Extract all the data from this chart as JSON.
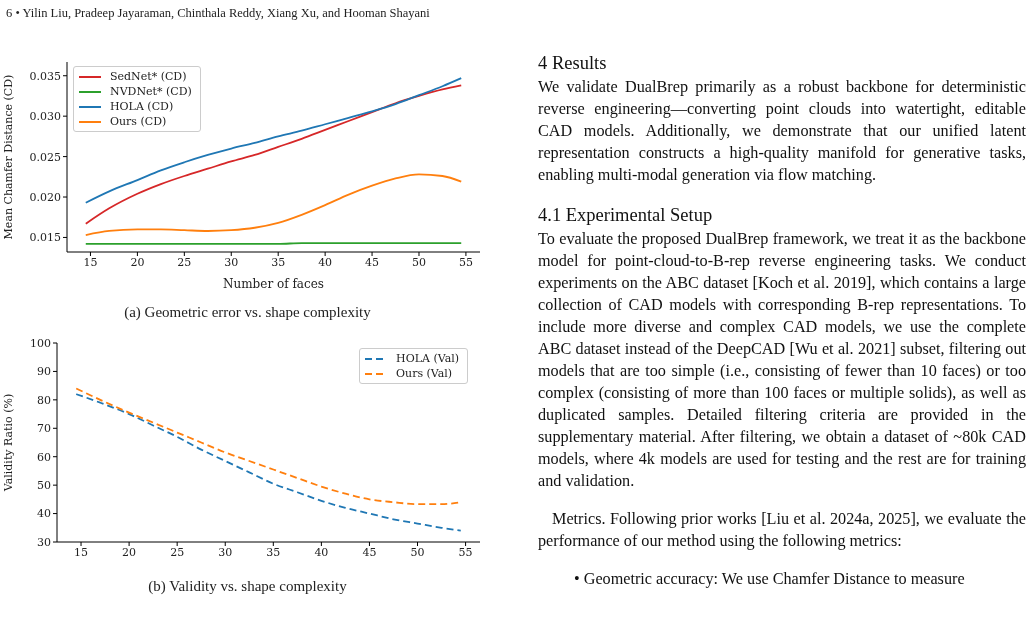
{
  "chart_data": [
    {
      "type": "line",
      "title": "(a) Geometric error vs. shape complexity",
      "xlabel": "Number of faces",
      "ylabel": "Mean Chamfer Distance (CD)",
      "x": [
        14.5,
        17,
        20,
        22.5,
        25,
        27.5,
        30,
        32.5,
        35,
        37.5,
        40,
        42.5,
        45,
        47.5,
        50,
        52.5,
        54.5
      ],
      "series": [
        {
          "name": "SedNet* (CD)",
          "color": "#d62728",
          "values": [
            0.0167,
            0.0186,
            0.0204,
            0.0216,
            0.0226,
            0.0235,
            0.0244,
            0.0252,
            0.0262,
            0.0272,
            0.0283,
            0.0294,
            0.0305,
            0.0316,
            0.0325,
            0.0333,
            0.0338
          ]
        },
        {
          "name": "NVDNet* (CD)",
          "color": "#2ca02c",
          "values": [
            0.0142,
            0.0142,
            0.0142,
            0.0142,
            0.0142,
            0.0142,
            0.0142,
            0.0142,
            0.0142,
            0.0143,
            0.0143,
            0.0143,
            0.0143,
            0.0143,
            0.0143,
            0.0143,
            0.0143
          ]
        },
        {
          "name": "HOLA (CD)",
          "color": "#1f77b4",
          "values": [
            0.0193,
            0.0207,
            0.0221,
            0.0233,
            0.0243,
            0.0252,
            0.026,
            0.0267,
            0.0275,
            0.0282,
            0.029,
            0.0298,
            0.0306,
            0.0315,
            0.0326,
            0.0337,
            0.0347
          ]
        },
        {
          "name": "Ours (CD)",
          "color": "#ff7f0e",
          "values": [
            0.0153,
            0.0158,
            0.016,
            0.016,
            0.0159,
            0.0158,
            0.0159,
            0.0162,
            0.0168,
            0.0178,
            0.019,
            0.0203,
            0.0214,
            0.0223,
            0.0228,
            0.0226,
            0.0219
          ]
        }
      ],
      "xlim": [
        12.5,
        56.5
      ],
      "xticks": [
        15,
        20,
        25,
        30,
        35,
        40,
        45,
        50,
        55
      ],
      "ylim": [
        0.0132,
        0.0367
      ],
      "yticks": [
        {
          "value": 0.015,
          "label": "0.015"
        },
        {
          "value": 0.02,
          "label": "0.020"
        },
        {
          "value": 0.025,
          "label": "0.025"
        },
        {
          "value": 0.03,
          "label": "0.030"
        },
        {
          "value": 0.035,
          "label": "0.035"
        }
      ],
      "legend": "top left",
      "line_style": "solid"
    },
    {
      "type": "line",
      "title": "(b) Validity vs. shape complexity",
      "ylabel": "Validity Ratio (%)",
      "x": [
        14.5,
        17,
        20,
        22.5,
        25,
        27.5,
        30,
        32.5,
        35,
        37.5,
        40,
        42.5,
        45,
        47.5,
        50,
        52.5,
        54.5
      ],
      "series": [
        {
          "name": "HOLA (Val)",
          "color": "#1f77b4",
          "values": [
            82,
            79,
            75,
            71,
            67,
            62.5,
            58.5,
            54.5,
            50.5,
            47.5,
            44.5,
            42,
            40,
            38,
            36.5,
            35,
            34
          ]
        },
        {
          "name": "Ours (Val)",
          "color": "#ff7f0e",
          "values": [
            84,
            80,
            75.5,
            72,
            68.5,
            65,
            61.5,
            58.5,
            55.5,
            52.5,
            49.5,
            47,
            45,
            44,
            43.3,
            43.3,
            44
          ]
        }
      ],
      "xlim": [
        12.5,
        56.5
      ],
      "xticks": [
        15,
        20,
        25,
        30,
        35,
        40,
        45,
        50,
        55
      ],
      "ylim": [
        30,
        100
      ],
      "yticks": [
        30,
        40,
        50,
        60,
        70,
        80,
        90,
        100
      ],
      "legend": "top right",
      "line_style": "dashed"
    },
    {
      "type": "other",
      "annotations": [
        "6 • Yilin Liu, Pradeep Jayaraman, Chinthala Reddy, Xiang Xu, and Hooman Shayani",
        "4 Results",
        "We validate DualBrep primarily as a robust backbone for deterministic reverse engineering—converting point clouds into watertight, editable CAD models. Additionally, we demonstrate that our unified latent representation constructs a high-quality manifold for generative tasks, enabling multi-modal generation via flow matching.",
        "4.1 Experimental Setup",
        "To evaluate the proposed DualBrep framework, we treat it as the backbone model for point-cloud-to-B-rep reverse engineering tasks. We conduct experiments on the ABC dataset [Koch et al. 2019], which contains a large collection of CAD models with corresponding B-rep representations. To include more diverse and complex CAD models, we use the complete ABC dataset instead of the DeepCAD [Wu et al. 2021] subset, filtering out models that are too simple (i.e., consisting of fewer than 10 faces) or too complex (consisting of more than 100 faces or multiple solids), as well as duplicated samples. Detailed filtering criteria are provided in the supplementary material. After filtering, we obtain a dataset of ~80k CAD models, where 4k models are used for testing and the rest are for training and validation.",
        "Metrics. Following prior works [Liu et al. 2024a, 2025], we evaluate the performance of our method using the following metrics:",
        "• Geometric accuracy: We use Chamfer Distance to measure"
      ]
    }
  ]
}
